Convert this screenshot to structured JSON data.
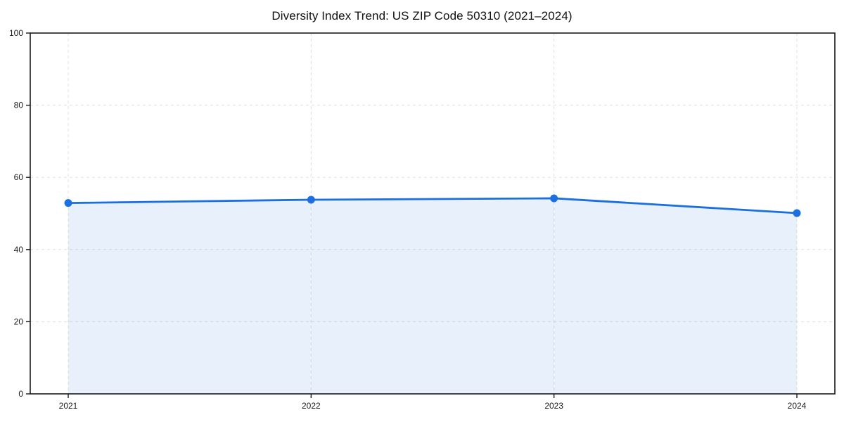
{
  "chart_data": {
    "type": "line",
    "title": "Diversity Index Trend: US ZIP Code 50310 (2021–2024)",
    "categories": [
      "2021",
      "2022",
      "2023",
      "2024"
    ],
    "values": [
      52.9,
      53.8,
      54.2,
      50.1
    ],
    "series_name": "Diversity Index",
    "xlabel": "",
    "ylabel": "",
    "ylim": [
      0,
      100
    ],
    "yticks": [
      0,
      20,
      40,
      60,
      80,
      100
    ],
    "grid": true,
    "grid_style": "dashed",
    "legend": false,
    "area_fill": true,
    "marker": "circle",
    "colors": {
      "line": "#1b6fe0",
      "marker": "#1b6fe0",
      "fill": "rgba(27,111,224,0.10)",
      "grid": "#dfdfdf",
      "spine": "#1a1a1a",
      "tick_text": "#1a1a1a",
      "title_text": "#111111",
      "background": "#ffffff"
    }
  }
}
